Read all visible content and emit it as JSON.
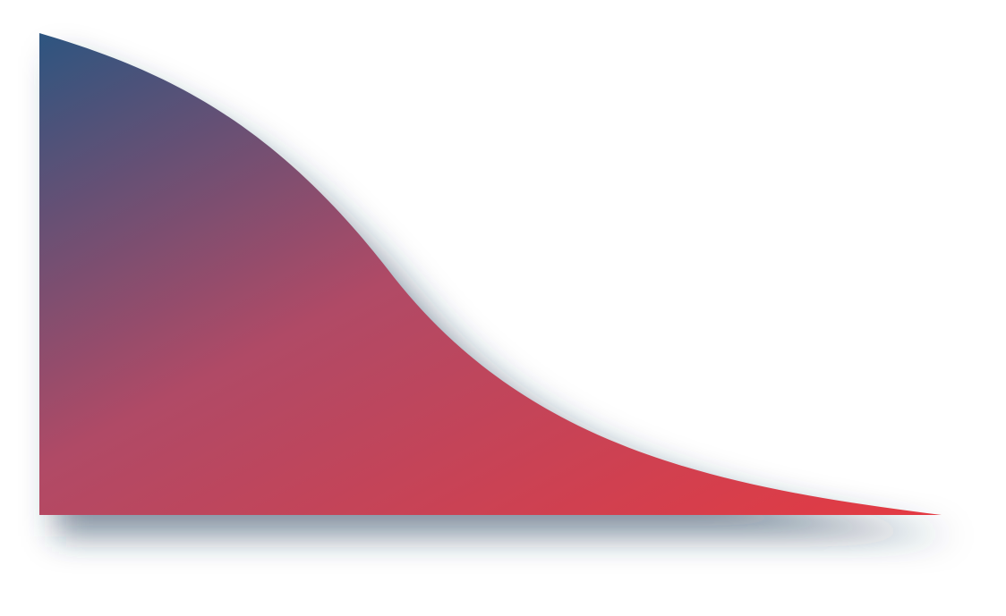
{
  "graphic": {
    "shape": "falling-curve-area",
    "colors": {
      "gradient_start": "#2d5580",
      "gradient_mid": "#b04a66",
      "gradient_end": "#e43a42",
      "shadow": "#1e3a55",
      "background": "#ffffff"
    }
  }
}
